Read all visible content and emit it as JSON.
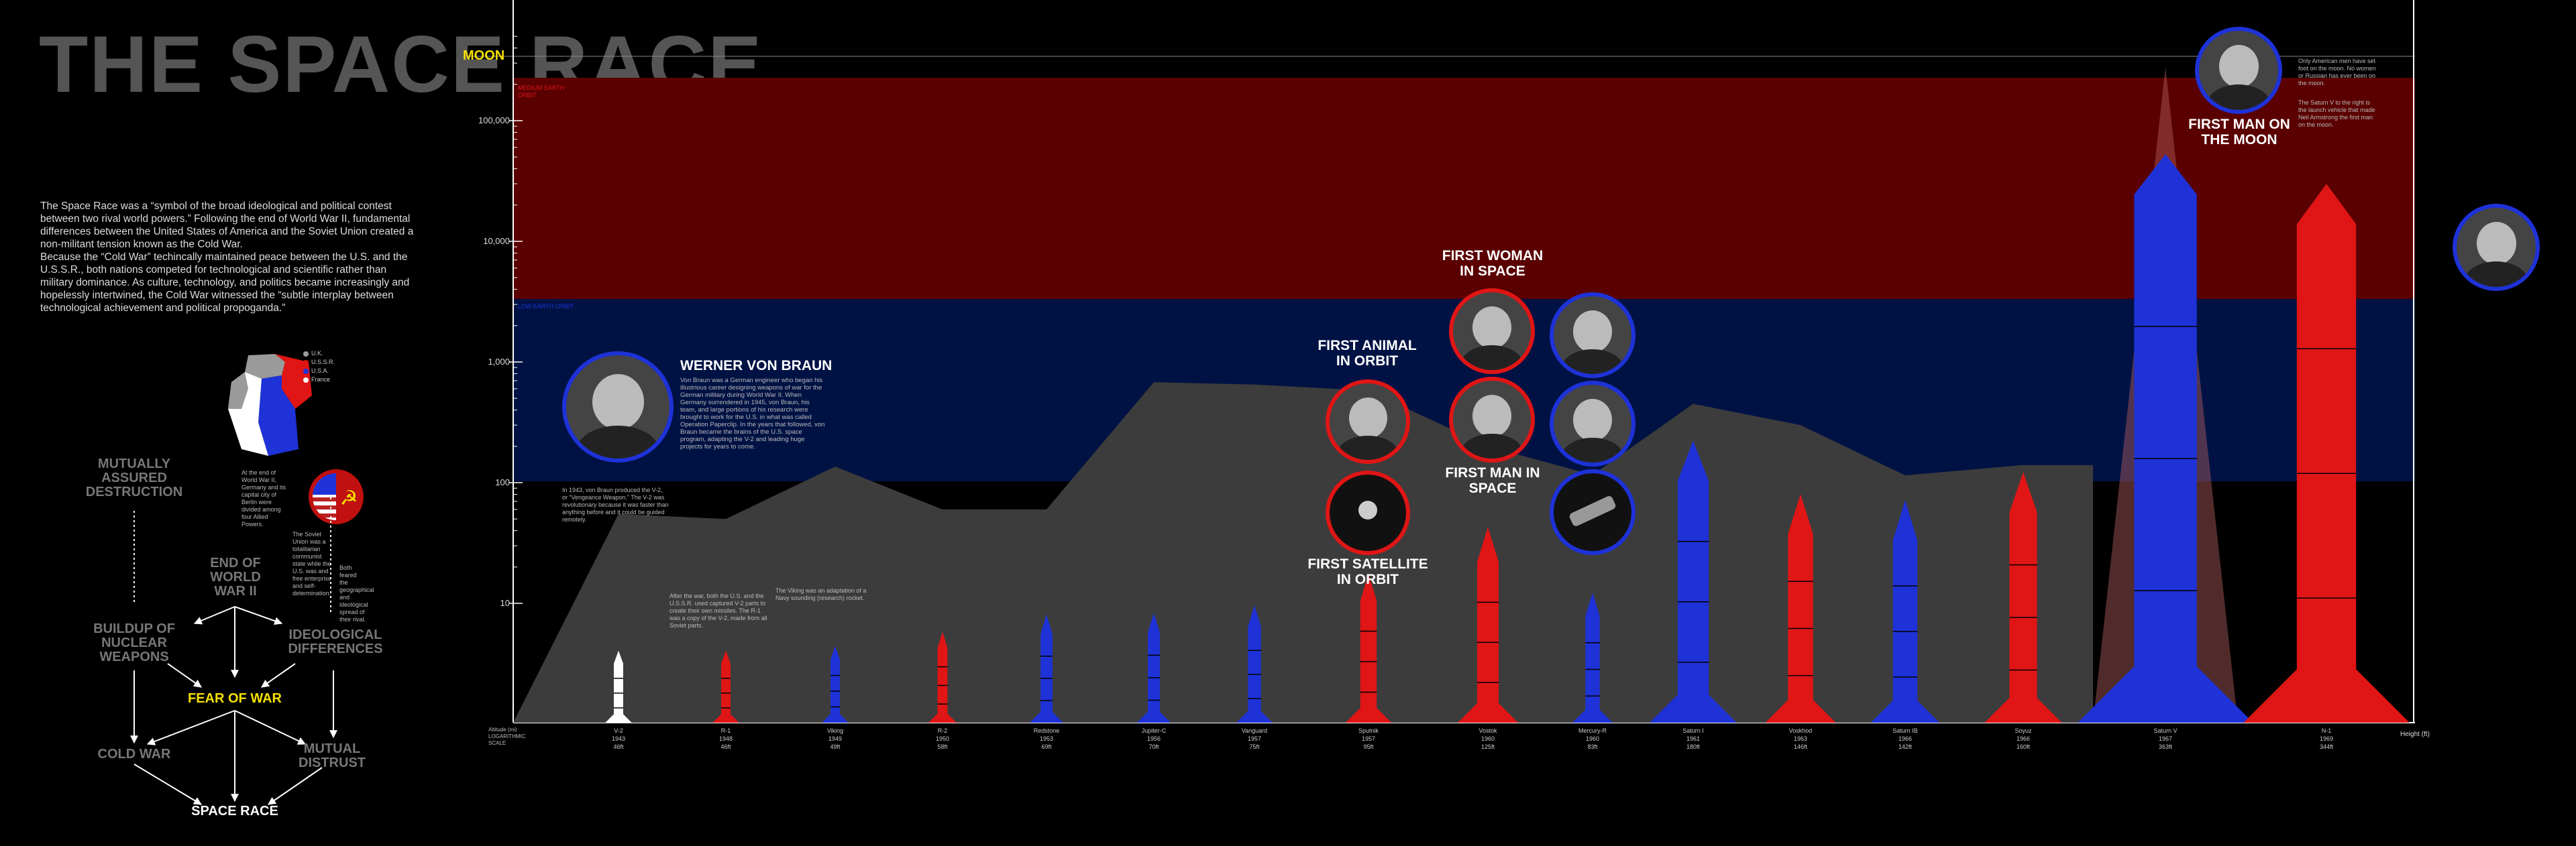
{
  "title": "THE SPACE RACE",
  "intro": {
    "p1": "The Space Race was a “symbol of the broad ideological and political contest between two rival world powers.” Following the end of World War II, fundamental differences between the United States of America and the Soviet Union created a non-militant tension known as the Cold War.",
    "p2": "Because the “Cold War” techincally maintained peace between the U.S. and the U.S.S.R., both nations competed for technological and scientific rather than military dominance. As culture, technology, and politics became increasingly and hopelessly intertwined, the Cold War witnessed the “subtle interplay between technological achievement and political propoganda.”"
  },
  "legend": [
    {
      "label": "U.K.",
      "color": "#9a9a9a"
    },
    {
      "label": "U.S.S.R.",
      "color": "#e01515"
    },
    {
      "label": "U.S.A.",
      "color": "#1e32d8"
    },
    {
      "label": "France",
      "color": "#ffffff"
    }
  ],
  "notes": {
    "germany": "At the end of World War II, Germany and its capital city of Berlin were divided among four Allied Powers.",
    "soviet": "The Soviet Union was a totalitarian communist state while the U.S. was and free enterprise and self-determination.",
    "spread": "Both feared the geographical and ideological spread of their rival.",
    "vonbraun_bio": "Von Braun was a German engineer who began his illustrious career designing weapons of war for the German military during World War II. When Germany surrendered in 1945, von Braun, his team, and large portions of his research were brought to work for the U.S. in what was called Operation Paperclip. In the years that followed, von Braun became the brains of the U.S. space program, adapting the V-2 and leading huge projects for years to come.",
    "v2": "In 1943, von Braun produced the V-2, or “Vengeance Weapon.” The V-2 was revolutionary because it was faster than anything before and it could be guided remotely.",
    "r1": "After the war, both the U.S. and the U.S.S.R. used captured V-2 parts to create their own missiles. The R-1 was a copy of the V-2, made from all Soviet parts.",
    "viking": "The Viking was an adaptation of a Navy sounding (research) rocket.",
    "moon": "Only American men have set foot on the moon. No women or Russian has ever been on the moon.",
    "saturn": "The Saturn V to the right is the launch vehicle that made Neil Armstrong the first man on the moon."
  },
  "flow": {
    "mad": "MUTUALLY ASSURED DESTRUCTION",
    "end_ww2": "END OF WORLD WAR II",
    "buildup": "BUILDUP OF NUCLEAR WEAPONS",
    "ideological": "IDEOLOGICAL DIFFERENCES",
    "fear": "FEAR OF WAR",
    "cold_war": "COLD WAR",
    "distrust": "MUTUAL DISTRUST",
    "space_race": "SPACE RACE"
  },
  "headlines": {
    "von_braun": "WERNER VON BRAUN",
    "first_animal": "FIRST ANIMAL IN ORBIT",
    "first_woman": "FIRST WOMAN IN SPACE",
    "first_man": "FIRST MAN IN SPACE",
    "first_satellite": "FIRST SATELLITE IN ORBIT",
    "first_moon": "FIRST MAN ON THE MOON"
  },
  "chart_data": {
    "type": "bar",
    "ylabel": "Altitude (mi) LOGARITHMIC SCALE",
    "ylabel_right": "Height (ft)",
    "y_scale": "log",
    "y_ticks": [
      "100,000",
      "10,000",
      "1,000",
      "100",
      "10"
    ],
    "top_label": "MOON",
    "bands": [
      {
        "label": "MEDIUM EARTH ORBIT",
        "color": "#5a0000"
      },
      {
        "label": "LOW EARTH ORBIT",
        "color": "#001244"
      }
    ],
    "rockets": [
      {
        "name": "V-2",
        "year": "1943",
        "height": "46ft",
        "country": "Germany",
        "color": "#ffffff",
        "height_ft": 46,
        "altitude_mi": 55
      },
      {
        "name": "R-1",
        "year": "1948",
        "height": "46ft",
        "country": "USSR",
        "color": "#e01515",
        "height_ft": 46,
        "altitude_mi": 50
      },
      {
        "name": "Viking",
        "year": "1949",
        "height": "49ft",
        "country": "USA",
        "color": "#1e32d8",
        "height_ft": 49,
        "altitude_mi": 136
      },
      {
        "name": "R-2",
        "year": "1950",
        "height": "58ft",
        "country": "USSR",
        "color": "#e01515",
        "height_ft": 58,
        "altitude_mi": 60
      },
      {
        "name": "Redstone",
        "year": "1953",
        "height": "69ft",
        "country": "USA",
        "color": "#1e32d8",
        "height_ft": 69,
        "altitude_mi": 60
      },
      {
        "name": "Jupiter-C",
        "year": "1956",
        "height": "70ft",
        "country": "USA",
        "color": "#1e32d8",
        "height_ft": 70,
        "altitude_mi": 680
      },
      {
        "name": "Vanguard",
        "year": "1957",
        "height": "75ft",
        "country": "USA",
        "color": "#1e32d8",
        "height_ft": 75,
        "altitude_mi": 650
      },
      {
        "name": "Sputnik",
        "year": "1957",
        "height": "95ft",
        "country": "USSR",
        "color": "#e01515",
        "height_ft": 95,
        "altitude_mi": 580
      },
      {
        "name": "Vostok",
        "year": "1960",
        "height": "125ft",
        "country": "USSR",
        "color": "#e01515",
        "height_ft": 125,
        "altitude_mi": 200
      },
      {
        "name": "Mercury-R",
        "year": "1960",
        "height": "83ft",
        "country": "USA",
        "color": "#1e32d8",
        "height_ft": 83,
        "altitude_mi": 116
      },
      {
        "name": "Saturn I",
        "year": "1961",
        "height": "180ft",
        "country": "USA",
        "color": "#1e32d8",
        "height_ft": 180,
        "altitude_mi": 450
      },
      {
        "name": "Voskhod",
        "year": "1963",
        "height": "146ft",
        "country": "USSR",
        "color": "#e01515",
        "height_ft": 146,
        "altitude_mi": 300
      },
      {
        "name": "Saturn IB",
        "year": "1966",
        "height": "142ft",
        "country": "USA",
        "color": "#1e32d8",
        "height_ft": 142,
        "altitude_mi": 115
      },
      {
        "name": "Soyuz",
        "year": "1966",
        "height": "160ft",
        "country": "USSR",
        "color": "#e01515",
        "height_ft": 160,
        "altitude_mi": 140
      },
      {
        "name": "Saturn V",
        "year": "1967",
        "height": "363ft",
        "country": "USA",
        "color": "#1e32d8",
        "height_ft": 363,
        "altitude_mi": 238900
      },
      {
        "name": "N-1",
        "year": "1969",
        "height": "344ft",
        "country": "USSR",
        "color": "#e01515",
        "height_ft": 344,
        "altitude_mi": 0
      }
    ]
  }
}
